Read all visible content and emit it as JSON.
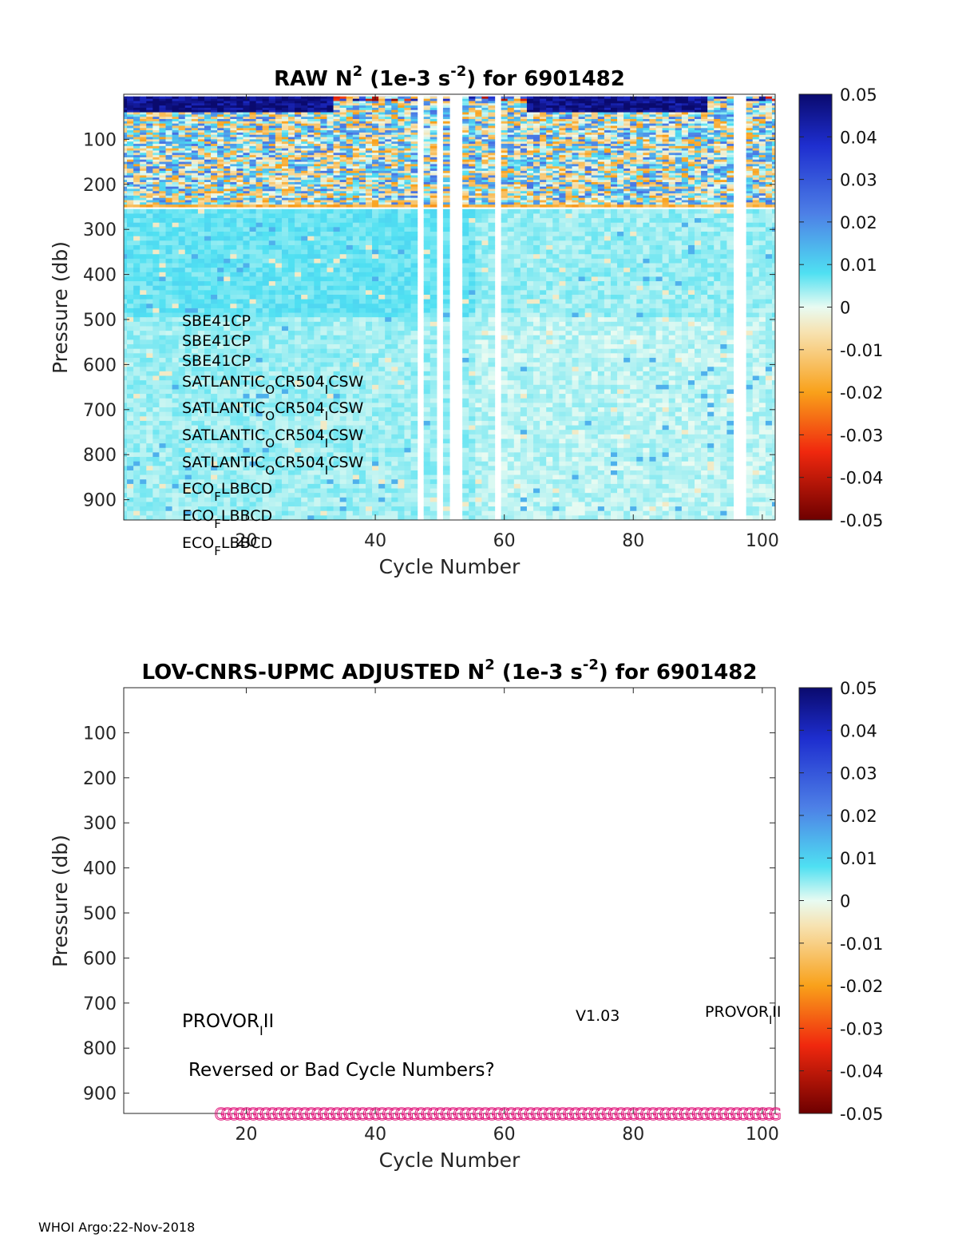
{
  "chart_data": [
    {
      "type": "heatmap",
      "title_prefix": "RAW N",
      "title_sup": "2",
      "title_units_a": " (1e-3 s",
      "title_units_sup": "-2",
      "title_suffix": ") for 6901482",
      "xlabel": "Cycle Number",
      "ylabel": "Pressure (db)",
      "xlim": [
        1,
        102
      ],
      "ylim": [
        0,
        945
      ],
      "y_reversed": true,
      "x_ticks": [
        20,
        40,
        60,
        80,
        100
      ],
      "y_ticks": [
        100,
        200,
        300,
        400,
        500,
        600,
        700,
        800,
        900
      ],
      "colorbar": {
        "min": -0.05,
        "max": 0.05,
        "ticks": [
          "0.05",
          "0.04",
          "0.03",
          "0.02",
          "0.01",
          "0",
          "-0.01",
          "-0.02",
          "-0.03",
          "-0.04",
          "-0.05"
        ],
        "colormap": "blue-cyan-white-yellow-red"
      },
      "missing_cycles": [
        47,
        50,
        52,
        53,
        59,
        96,
        97
      ],
      "sensors": [
        {
          "a": "SBE41CP"
        },
        {
          "a": "SBE41CP"
        },
        {
          "a": "SBE41CP"
        },
        {
          "a": "SATLANTIC",
          "s1": "O",
          "b": "CR504",
          "s2": "I",
          "c": "CSW"
        },
        {
          "a": "SATLANTIC",
          "s1": "O",
          "b": "CR504",
          "s2": "I",
          "c": "CSW"
        },
        {
          "a": "SATLANTIC",
          "s1": "O",
          "b": "CR504",
          "s2": "I",
          "c": "CSW"
        },
        {
          "a": "SATLANTIC",
          "s1": "O",
          "b": "CR504",
          "s2": "I",
          "c": "CSW"
        },
        {
          "a": "ECO",
          "s1": "F",
          "b": "LBBCD"
        },
        {
          "a": "ECO",
          "s1": "F",
          "b": "LBBCD"
        },
        {
          "a": "ECO",
          "s1": "F",
          "b": "LBBCD"
        }
      ]
    },
    {
      "type": "heatmap",
      "title_prefix": "LOV-CNRS-UPMC  ADJUSTED N",
      "title_sup": "2",
      "title_units_a": " (1e-3 s",
      "title_units_sup": "-2",
      "title_suffix": ") for 6901482",
      "xlabel": "Cycle Number",
      "ylabel": "Pressure (db)",
      "xlim": [
        1,
        102
      ],
      "ylim": [
        0,
        945
      ],
      "y_reversed": true,
      "x_ticks": [
        20,
        40,
        60,
        80,
        100
      ],
      "y_ticks": [
        100,
        200,
        300,
        400,
        500,
        600,
        700,
        800,
        900
      ],
      "colorbar": {
        "min": -0.05,
        "max": 0.05,
        "ticks": [
          "0.05",
          "0.04",
          "0.03",
          "0.02",
          "0.01",
          "0",
          "-0.01",
          "-0.02",
          "-0.03",
          "-0.04",
          "-0.05"
        ],
        "colormap": "blue-cyan-white-yellow-red"
      },
      "empty": true,
      "marker_glyph": "G",
      "marker_color": "#e0147a",
      "marker_x_range": [
        16,
        102
      ],
      "marker_y": 945
    }
  ],
  "annotations": {
    "platform_left_a": "PROVOR",
    "platform_left_s": "I",
    "platform_left_b": "II",
    "version": "V1.03",
    "platform_right_a": "PROVOR",
    "platform_right_s": "I",
    "platform_right_b": "II",
    "warning": "Reversed or Bad Cycle Numbers?"
  },
  "footer": "WHOI Argo:22-Nov-2018"
}
